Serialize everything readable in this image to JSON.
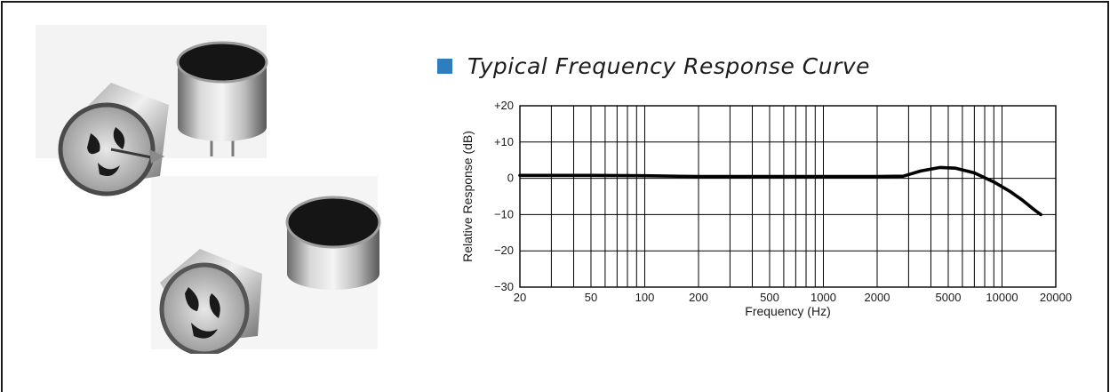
{
  "heading": "Typical Frequency Response Curve",
  "colors": {
    "bullet": "#2e7dbf",
    "curve": "#000000",
    "grid": "#000000"
  },
  "photo": {
    "icon": "electret-microphone-capsules-photo"
  },
  "chart_data": {
    "type": "line",
    "title": "Typical Frequency Response Curve",
    "xlabel": "Frequency (Hz)",
    "ylabel": "Relative Response (dB)",
    "xscale": "log",
    "xlim": [
      20,
      20000
    ],
    "ylim": [
      -30,
      20
    ],
    "grid": true,
    "xticks": [
      20,
      50,
      100,
      200,
      500,
      1000,
      2000,
      5000,
      10000,
      20000
    ],
    "xtick_labels": [
      "20",
      "50",
      "100",
      "200",
      "500",
      "1000",
      "2000",
      "5000",
      "10000",
      "20000"
    ],
    "yticks": [
      20,
      10,
      0,
      -10,
      -20,
      -30
    ],
    "ytick_labels": [
      "+20",
      "+10",
      "0",
      "−10",
      "−20",
      "−30"
    ],
    "series": [
      {
        "x": [
          20,
          50,
          100,
          200,
          500,
          1000,
          2000,
          2800,
          3500,
          4500,
          5500,
          7000,
          9000,
          11000,
          13000,
          15000,
          16500
        ],
        "y": [
          0.8,
          0.8,
          0.7,
          0.5,
          0.5,
          0.5,
          0.5,
          0.6,
          2.0,
          3.0,
          2.8,
          1.5,
          -1.0,
          -3.5,
          -6.0,
          -8.5,
          -10.0
        ]
      }
    ]
  }
}
